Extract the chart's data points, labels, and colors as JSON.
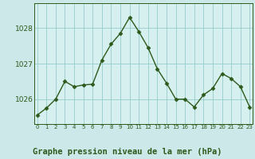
{
  "x": [
    0,
    1,
    2,
    3,
    4,
    5,
    6,
    7,
    8,
    9,
    10,
    11,
    12,
    13,
    14,
    15,
    16,
    17,
    18,
    19,
    20,
    21,
    22,
    23
  ],
  "y": [
    1025.55,
    1025.75,
    1026.0,
    1026.5,
    1026.35,
    1026.4,
    1026.42,
    1027.1,
    1027.55,
    1027.85,
    1028.3,
    1027.9,
    1027.45,
    1026.85,
    1026.45,
    1026.0,
    1026.0,
    1025.78,
    1026.12,
    1026.3,
    1026.72,
    1026.58,
    1026.35,
    1025.78
  ],
  "line_color": "#2d5a1b",
  "marker": "D",
  "marker_size": 2.5,
  "linewidth": 1.0,
  "bg_color": "#cce8e8",
  "plot_bg_color": "#d6f0f0",
  "grid_color": "#99cccc",
  "title": "Graphe pression niveau de la mer (hPa)",
  "title_color": "#2d5a1b",
  "title_fontsize": 7.5,
  "xlabel_ticks": [
    "0",
    "1",
    "2",
    "3",
    "4",
    "5",
    "6",
    "7",
    "8",
    "9",
    "10",
    "11",
    "12",
    "13",
    "14",
    "15",
    "16",
    "17",
    "18",
    "19",
    "20",
    "21",
    "22",
    "23"
  ],
  "yticks": [
    1026,
    1027,
    1028
  ],
  "ylim": [
    1025.3,
    1028.7
  ],
  "xlim": [
    -0.3,
    23.3
  ],
  "tick_color": "#2d5a1b",
  "axis_color": "#2d5a1b",
  "bottom_bar_color": "#cce8e8",
  "bottom_bar_height": 0.22
}
